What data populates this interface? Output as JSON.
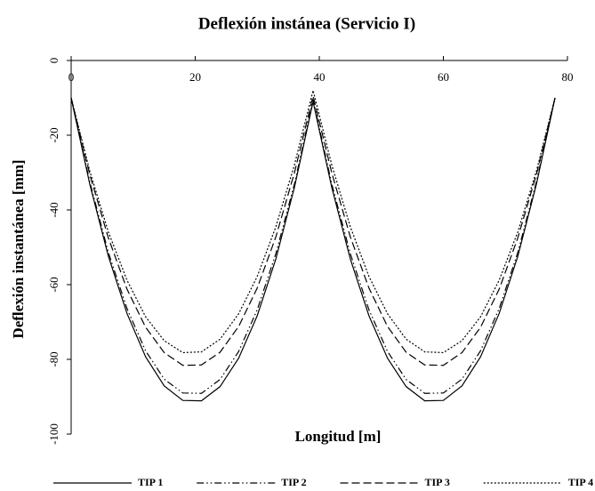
{
  "chart_data": {
    "type": "line",
    "title": "Deflexión instánea (Servicio I)",
    "xlabel": "Longitud [m]",
    "ylabel": "Deflexión instantánea [mm]",
    "x": [
      0,
      3,
      6,
      9,
      12,
      15,
      18,
      21,
      24,
      27,
      30,
      33,
      36,
      39,
      42,
      45,
      48,
      51,
      54,
      57,
      60,
      63,
      66,
      69,
      72,
      75,
      78
    ],
    "series": [
      {
        "name": "TIP 1",
        "color": "#000000",
        "line_style": "solid",
        "values": [
          -10,
          -33.1,
          -52.4,
          -67.7,
          -79.3,
          -87.1,
          -91.0,
          -91.1,
          -87.3,
          -79.7,
          -68.3,
          -53.1,
          -33.9,
          -11,
          -33.9,
          -53.1,
          -68.3,
          -79.7,
          -87.3,
          -91.1,
          -91.0,
          -87.1,
          -79.3,
          -67.7,
          -52.4,
          -33.1,
          -10
        ]
      },
      {
        "name": "TIP 2",
        "color": "#000000",
        "line_style": "dashdotdot",
        "values": [
          -10,
          -32.5,
          -51.4,
          -66.4,
          -77.7,
          -85.3,
          -89.0,
          -89.1,
          -85.4,
          -77.9,
          -66.7,
          -51.7,
          -33.0,
          -10.5,
          -33.0,
          -51.7,
          -66.7,
          -77.9,
          -85.4,
          -89.1,
          -89.0,
          -85.3,
          -77.7,
          -66.4,
          -51.4,
          -32.5,
          -10
        ]
      },
      {
        "name": "TIP 3",
        "color": "#000000",
        "line_style": "dashed",
        "values": [
          -10,
          -30.5,
          -47.5,
          -61.2,
          -71.4,
          -78.2,
          -81.6,
          -81.5,
          -78.1,
          -71.2,
          -60.9,
          -47.2,
          -30.0,
          -9.5,
          -30.0,
          -47.2,
          -60.9,
          -71.2,
          -78.1,
          -81.5,
          -81.6,
          -78.2,
          -71.4,
          -61.2,
          -47.5,
          -30.5,
          -10
        ]
      },
      {
        "name": "TIP 4",
        "color": "#000000",
        "line_style": "dotted",
        "values": [
          -10,
          -29.6,
          -45.9,
          -58.8,
          -68.6,
          -75.0,
          -78.2,
          -78.0,
          -74.6,
          -67.8,
          -57.8,
          -44.5,
          -27.9,
          -8,
          -27.9,
          -44.5,
          -57.8,
          -67.8,
          -74.6,
          -78.0,
          -78.2,
          -75.0,
          -68.6,
          -58.8,
          -45.9,
          -29.6,
          -10
        ]
      }
    ],
    "xlim": [
      0,
      80
    ],
    "xticks": [
      0,
      20,
      40,
      60,
      80
    ],
    "ylim": [
      -100,
      0
    ],
    "yticks": [
      0,
      -20,
      -40,
      -60,
      -80,
      -100
    ],
    "x_axis_position": "top",
    "legend": "bottom",
    "grid": false
  }
}
